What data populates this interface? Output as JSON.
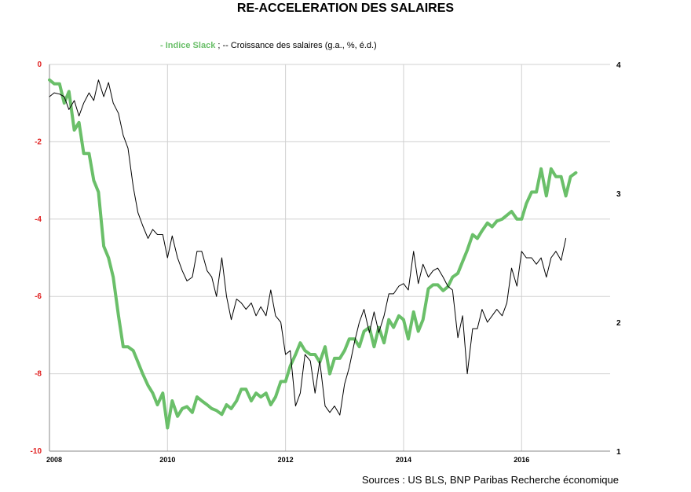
{
  "chart_data": {
    "type": "line",
    "title": "RE-ACCELERATION DES SALAIRES",
    "legend": {
      "series1_label": "- Indice Slack",
      "separator": " ; ",
      "series2_label": "-- Croissance des salaires (g.a., %, é.d.)"
    },
    "source": "Sources : US BLS, BNP Paribas Recherche économique",
    "x_axis": {
      "min": 2008,
      "max": 2017.5,
      "ticks": [
        "2008",
        "2010",
        "2012",
        "2014",
        "2016"
      ],
      "grid": true
    },
    "y_left": {
      "min": -10,
      "max": 0,
      "ticks": [
        "0",
        "-2",
        "-4",
        "-6",
        "-8",
        "-10"
      ],
      "grid": true
    },
    "y_right": {
      "min": 1,
      "max": 4,
      "ticks": [
        "4",
        "3",
        "2",
        "1"
      ]
    },
    "colors": {
      "slack": "#6abf69",
      "wages": "#000000",
      "left_ticks": "#e02020",
      "grid": "#d0d0d0"
    },
    "series": [
      {
        "name": "Indice Slack",
        "axis": "left",
        "points": [
          [
            2008.0,
            -0.4
          ],
          [
            2008.08,
            -0.5
          ],
          [
            2008.17,
            -0.5
          ],
          [
            2008.25,
            -1.0
          ],
          [
            2008.33,
            -0.7
          ],
          [
            2008.42,
            -1.7
          ],
          [
            2008.5,
            -1.5
          ],
          [
            2008.58,
            -2.3
          ],
          [
            2008.67,
            -2.3
          ],
          [
            2008.75,
            -3.0
          ],
          [
            2008.83,
            -3.3
          ],
          [
            2008.92,
            -4.7
          ],
          [
            2009.0,
            -5.0
          ],
          [
            2009.08,
            -5.5
          ],
          [
            2009.17,
            -6.5
          ],
          [
            2009.25,
            -7.3
          ],
          [
            2009.33,
            -7.3
          ],
          [
            2009.42,
            -7.4
          ],
          [
            2009.5,
            -7.7
          ],
          [
            2009.58,
            -8.0
          ],
          [
            2009.67,
            -8.3
          ],
          [
            2009.75,
            -8.5
          ],
          [
            2009.83,
            -8.8
          ],
          [
            2009.92,
            -8.5
          ],
          [
            2010.0,
            -9.4
          ],
          [
            2010.08,
            -8.7
          ],
          [
            2010.17,
            -9.1
          ],
          [
            2010.25,
            -8.9
          ],
          [
            2010.33,
            -8.85
          ],
          [
            2010.42,
            -9.0
          ],
          [
            2010.5,
            -8.6
          ],
          [
            2010.58,
            -8.7
          ],
          [
            2010.67,
            -8.8
          ],
          [
            2010.75,
            -8.9
          ],
          [
            2010.83,
            -8.95
          ],
          [
            2010.92,
            -9.05
          ],
          [
            2011.0,
            -8.8
          ],
          [
            2011.08,
            -8.9
          ],
          [
            2011.17,
            -8.7
          ],
          [
            2011.25,
            -8.4
          ],
          [
            2011.33,
            -8.4
          ],
          [
            2011.42,
            -8.7
          ],
          [
            2011.5,
            -8.5
          ],
          [
            2011.58,
            -8.6
          ],
          [
            2011.67,
            -8.5
          ],
          [
            2011.75,
            -8.8
          ],
          [
            2011.83,
            -8.6
          ],
          [
            2011.92,
            -8.2
          ],
          [
            2012.0,
            -8.2
          ],
          [
            2012.08,
            -7.8
          ],
          [
            2012.17,
            -7.5
          ],
          [
            2012.25,
            -7.2
          ],
          [
            2012.33,
            -7.4
          ],
          [
            2012.42,
            -7.5
          ],
          [
            2012.5,
            -7.5
          ],
          [
            2012.58,
            -7.7
          ],
          [
            2012.67,
            -7.3
          ],
          [
            2012.75,
            -8.0
          ],
          [
            2012.83,
            -7.6
          ],
          [
            2012.92,
            -7.6
          ],
          [
            2013.0,
            -7.4
          ],
          [
            2013.08,
            -7.1
          ],
          [
            2013.17,
            -7.1
          ],
          [
            2013.25,
            -7.3
          ],
          [
            2013.33,
            -6.9
          ],
          [
            2013.42,
            -6.8
          ],
          [
            2013.5,
            -7.3
          ],
          [
            2013.58,
            -6.8
          ],
          [
            2013.67,
            -7.2
          ],
          [
            2013.75,
            -6.6
          ],
          [
            2013.83,
            -6.8
          ],
          [
            2013.92,
            -6.5
          ],
          [
            2014.0,
            -6.6
          ],
          [
            2014.08,
            -7.1
          ],
          [
            2014.17,
            -6.4
          ],
          [
            2014.25,
            -6.9
          ],
          [
            2014.33,
            -6.6
          ],
          [
            2014.42,
            -5.8
          ],
          [
            2014.5,
            -5.7
          ],
          [
            2014.58,
            -5.7
          ],
          [
            2014.67,
            -5.85
          ],
          [
            2014.75,
            -5.75
          ],
          [
            2014.83,
            -5.5
          ],
          [
            2014.92,
            -5.4
          ],
          [
            2015.0,
            -5.1
          ],
          [
            2015.08,
            -4.8
          ],
          [
            2015.17,
            -4.4
          ],
          [
            2015.25,
            -4.5
          ],
          [
            2015.33,
            -4.3
          ],
          [
            2015.42,
            -4.1
          ],
          [
            2015.5,
            -4.2
          ],
          [
            2015.58,
            -4.05
          ],
          [
            2015.67,
            -4.0
          ],
          [
            2015.75,
            -3.9
          ],
          [
            2015.83,
            -3.8
          ],
          [
            2015.92,
            -4.0
          ],
          [
            2016.0,
            -4.0
          ],
          [
            2016.08,
            -3.6
          ],
          [
            2016.17,
            -3.3
          ],
          [
            2016.25,
            -3.3
          ],
          [
            2016.33,
            -2.7
          ],
          [
            2016.42,
            -3.4
          ],
          [
            2016.5,
            -2.7
          ],
          [
            2016.58,
            -2.9
          ],
          [
            2016.67,
            -2.9
          ],
          [
            2016.75,
            -3.4
          ],
          [
            2016.83,
            -2.9
          ],
          [
            2016.92,
            -2.8
          ]
        ]
      },
      {
        "name": "Croissance des salaires (g.a., %, é.d.)",
        "axis": "right",
        "points": [
          [
            2008.0,
            3.75
          ],
          [
            2008.08,
            3.78
          ],
          [
            2008.17,
            3.77
          ],
          [
            2008.25,
            3.75
          ],
          [
            2008.33,
            3.65
          ],
          [
            2008.42,
            3.72
          ],
          [
            2008.5,
            3.6
          ],
          [
            2008.58,
            3.7
          ],
          [
            2008.67,
            3.78
          ],
          [
            2008.75,
            3.72
          ],
          [
            2008.83,
            3.88
          ],
          [
            2008.92,
            3.75
          ],
          [
            2009.0,
            3.86
          ],
          [
            2009.08,
            3.7
          ],
          [
            2009.17,
            3.62
          ],
          [
            2009.25,
            3.45
          ],
          [
            2009.33,
            3.35
          ],
          [
            2009.42,
            3.05
          ],
          [
            2009.5,
            2.85
          ],
          [
            2009.58,
            2.75
          ],
          [
            2009.67,
            2.65
          ],
          [
            2009.75,
            2.72
          ],
          [
            2009.83,
            2.68
          ],
          [
            2009.92,
            2.68
          ],
          [
            2010.0,
            2.5
          ],
          [
            2010.08,
            2.67
          ],
          [
            2010.17,
            2.5
          ],
          [
            2010.25,
            2.4
          ],
          [
            2010.33,
            2.32
          ],
          [
            2010.42,
            2.35
          ],
          [
            2010.5,
            2.55
          ],
          [
            2010.58,
            2.55
          ],
          [
            2010.67,
            2.4
          ],
          [
            2010.75,
            2.35
          ],
          [
            2010.83,
            2.2
          ],
          [
            2010.92,
            2.5
          ],
          [
            2011.0,
            2.2
          ],
          [
            2011.08,
            2.02
          ],
          [
            2011.17,
            2.18
          ],
          [
            2011.25,
            2.15
          ],
          [
            2011.33,
            2.1
          ],
          [
            2011.42,
            2.15
          ],
          [
            2011.5,
            2.05
          ],
          [
            2011.58,
            2.12
          ],
          [
            2011.67,
            2.05
          ],
          [
            2011.75,
            2.25
          ],
          [
            2011.83,
            2.05
          ],
          [
            2011.92,
            2.0
          ],
          [
            2012.0,
            1.75
          ],
          [
            2012.08,
            1.78
          ],
          [
            2012.17,
            1.35
          ],
          [
            2012.25,
            1.45
          ],
          [
            2012.33,
            1.75
          ],
          [
            2012.42,
            1.7
          ],
          [
            2012.5,
            1.45
          ],
          [
            2012.58,
            1.7
          ],
          [
            2012.67,
            1.35
          ],
          [
            2012.75,
            1.3
          ],
          [
            2012.83,
            1.35
          ],
          [
            2012.92,
            1.28
          ],
          [
            2013.0,
            1.52
          ],
          [
            2013.08,
            1.65
          ],
          [
            2013.17,
            1.85
          ],
          [
            2013.25,
            2.0
          ],
          [
            2013.33,
            2.1
          ],
          [
            2013.42,
            1.92
          ],
          [
            2013.5,
            2.08
          ],
          [
            2013.58,
            1.92
          ],
          [
            2013.67,
            2.05
          ],
          [
            2013.75,
            2.22
          ],
          [
            2013.83,
            2.22
          ],
          [
            2013.92,
            2.28
          ],
          [
            2014.0,
            2.3
          ],
          [
            2014.08,
            2.25
          ],
          [
            2014.17,
            2.55
          ],
          [
            2014.25,
            2.3
          ],
          [
            2014.33,
            2.45
          ],
          [
            2014.42,
            2.35
          ],
          [
            2014.5,
            2.4
          ],
          [
            2014.58,
            2.42
          ],
          [
            2014.67,
            2.35
          ],
          [
            2014.75,
            2.28
          ],
          [
            2014.83,
            2.25
          ],
          [
            2014.92,
            1.88
          ],
          [
            2015.0,
            2.05
          ],
          [
            2015.08,
            1.6
          ],
          [
            2015.17,
            1.95
          ],
          [
            2015.25,
            1.95
          ],
          [
            2015.33,
            2.1
          ],
          [
            2015.42,
            2.0
          ],
          [
            2015.5,
            2.05
          ],
          [
            2015.58,
            2.1
          ],
          [
            2015.67,
            2.05
          ],
          [
            2015.75,
            2.15
          ],
          [
            2015.83,
            2.42
          ],
          [
            2015.92,
            2.28
          ],
          [
            2016.0,
            2.55
          ],
          [
            2016.08,
            2.5
          ],
          [
            2016.17,
            2.5
          ],
          [
            2016.25,
            2.45
          ],
          [
            2016.33,
            2.5
          ],
          [
            2016.42,
            2.35
          ],
          [
            2016.5,
            2.5
          ],
          [
            2016.58,
            2.55
          ],
          [
            2016.67,
            2.48
          ],
          [
            2016.75,
            2.65
          ]
        ]
      }
    ]
  }
}
